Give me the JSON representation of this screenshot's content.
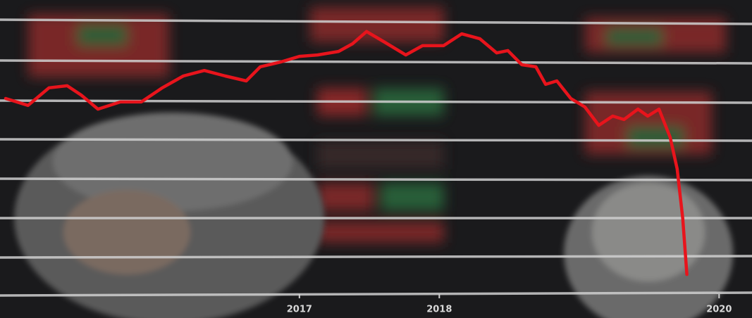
{
  "chart_data": {
    "type": "line",
    "x": [
      2014.9,
      2015.06,
      2015.21,
      2015.34,
      2015.44,
      2015.56,
      2015.72,
      2015.87,
      2016.02,
      2016.17,
      2016.32,
      2016.47,
      2016.62,
      2016.72,
      2016.87,
      2017.0,
      2017.13,
      2017.28,
      2017.38,
      2017.48,
      2017.61,
      2017.76,
      2017.88,
      2018.03,
      2018.16,
      2018.29,
      2018.41,
      2018.49,
      2018.59,
      2018.69,
      2018.76,
      2018.84,
      2018.94,
      2019.04,
      2019.14,
      2019.24,
      2019.32,
      2019.42,
      2019.49,
      2019.57,
      2019.65,
      2019.7,
      2019.74,
      2019.77
    ],
    "values": [
      68.3,
      65.9,
      72,
      72.7,
      69.5,
      64.6,
      67.1,
      67.1,
      72,
      76.1,
      78,
      76.1,
      74.4,
      79.3,
      81,
      82.9,
      83.4,
      84.6,
      87.3,
      91.5,
      87.8,
      83.4,
      86.6,
      86.6,
      90.7,
      89,
      84.1,
      84.9,
      80,
      79.3,
      73.2,
      74.4,
      68.3,
      65.4,
      59,
      62.2,
      61,
      64.6,
      62.2,
      64.6,
      54.9,
      43.9,
      26.8,
      7.3
    ],
    "color": "#e8141c",
    "xlim": [
      2014.9,
      2020.2
    ],
    "ylim": [
      0,
      100
    ],
    "xticks": [
      2017,
      2018,
      2020
    ]
  }
}
